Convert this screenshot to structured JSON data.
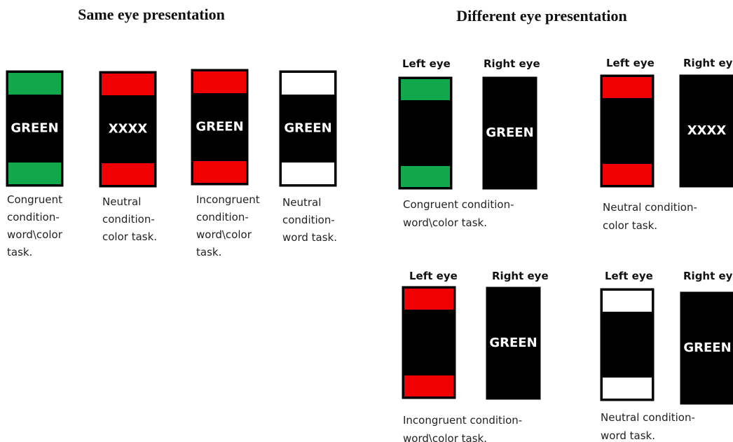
{
  "same_eye": {
    "title": "Same eye presentation",
    "stimuli": [
      {
        "word": "GREEN",
        "caption": [
          "Congruent",
          "condition-",
          "word\\color",
          "task."
        ]
      },
      {
        "word": "XXXX",
        "caption": [
          "Neutral",
          "condition-",
          "color task."
        ]
      },
      {
        "word": "GREEN",
        "caption": [
          "Incongruent",
          "condition-",
          "word\\color",
          "task."
        ]
      },
      {
        "word": "GREEN",
        "caption": [
          "Neutral",
          "condition-",
          "word task."
        ]
      }
    ]
  },
  "different_eye": {
    "title": "Different eye presentation",
    "panels": [
      {
        "left_label": "Left eye",
        "right_label": "Right eye",
        "right_word": "GREEN",
        "caption": [
          "Congruent condition-",
          "word\\color task."
        ]
      },
      {
        "left_label": "Left eye",
        "right_label": "Right eye",
        "right_word": "XXXX",
        "caption": [
          "Neutral condition-",
          "color task."
        ]
      },
      {
        "left_label": "Left eye",
        "right_label": "Right eye",
        "right_word": "GREEN",
        "caption": [
          "Incongruent condition-",
          "word\\color task."
        ]
      },
      {
        "left_label": "Left eye",
        "right_label": "Right eye",
        "right_word": "GREEN",
        "caption": [
          "Neutral condition-",
          "word task."
        ]
      }
    ]
  }
}
